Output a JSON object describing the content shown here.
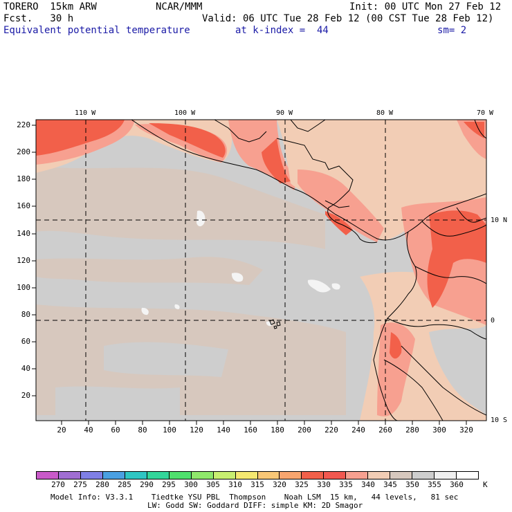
{
  "header": {
    "model": "TORERO  15km ARW",
    "org": "NCAR/MMM",
    "init": "Init: 00 UTC Mon 27 Feb 12",
    "fcst": "Fcst.   30 h",
    "valid": "Valid: 06 UTC Tue 28 Feb 12 (00 CST Tue 28 Feb 12)",
    "field": "Equivalent potential temperature",
    "level": "at k-index =  44",
    "smooth": "sm= 2"
  },
  "map": {
    "longitude_labels": [
      "110 W",
      "100 W",
      "90 W",
      "80 W",
      "70 W"
    ],
    "latitude_labels": [
      "10 N",
      "0",
      "10 S"
    ],
    "y_ticks": [
      "220",
      "200",
      "180",
      "160",
      "140",
      "120",
      "100",
      "80",
      "60",
      "40",
      "20"
    ],
    "x_ticks": [
      "20",
      "40",
      "60",
      "80",
      "100",
      "120",
      "140",
      "160",
      "180",
      "200",
      "220",
      "240",
      "260",
      "280",
      "300",
      "320"
    ]
  },
  "colorbar": {
    "labels": [
      "270",
      "275",
      "280",
      "285",
      "290",
      "295",
      "300",
      "305",
      "310",
      "315",
      "320",
      "325",
      "330",
      "335",
      "340",
      "345",
      "350",
      "355",
      "360"
    ],
    "unit": "K",
    "colors": [
      "#c95ac9",
      "#a06ed2",
      "#7f7fe5",
      "#4aa0e2",
      "#2fc6c3",
      "#33d69a",
      "#4fe06d",
      "#8fe86b",
      "#c8ef70",
      "#f5e870",
      "#f9c776",
      "#f8a56e",
      "#f2604a",
      "#f25850",
      "#f7a090",
      "#f2cdb5",
      "#d7c8be",
      "#cecece",
      "#f0f0f0",
      "#ffffff"
    ]
  },
  "footer": {
    "line1": "Model Info: V3.3.1    Tiedtke YSU PBL  Thompson    Noah LSM  15 km,   44 levels,   81 sec",
    "line2": "LW: Godd SW: Goddard DIFF: simple KM: 2D Smagor"
  }
}
